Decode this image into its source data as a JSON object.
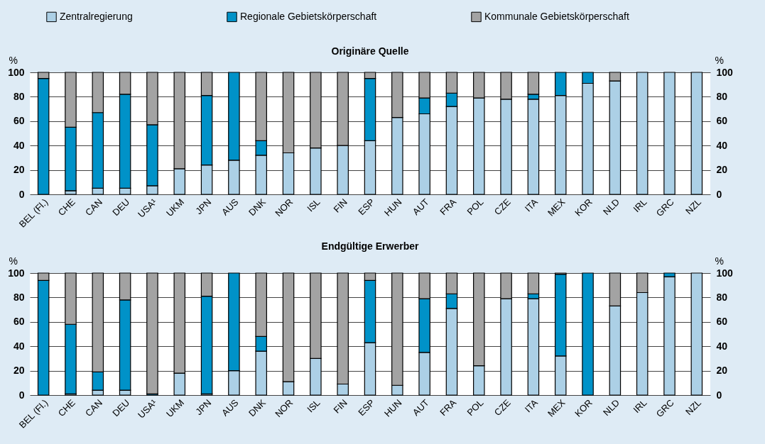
{
  "chart_data": [
    {
      "type": "bar",
      "stacked": true,
      "title": "Originäre Quelle",
      "ylabel": "%",
      "y2label": "%",
      "legend": "top",
      "grid": "y",
      "categories": [
        "BEL (Fl.)",
        "CHE",
        "CAN",
        "DEU",
        "USA¹",
        "UKM",
        "JPN",
        "AUS",
        "DNK",
        "NOR",
        "ISL",
        "FIN",
        "ESP",
        "HUN",
        "AUT",
        "FRA",
        "POL",
        "CZE",
        "ITA",
        "MEX",
        "KOR",
        "NLD",
        "IRL",
        "GRC",
        "NZL"
      ],
      "series": [
        {
          "name": "Zentralregierung",
          "color": "#acd0e6",
          "values": [
            0,
            3,
            5,
            5,
            7,
            21,
            24,
            28,
            32,
            34,
            38,
            40,
            44,
            63,
            66,
            72,
            79,
            78,
            78,
            81,
            91,
            93,
            100,
            100,
            100
          ]
        },
        {
          "name": "Regionale Gebietskörperschaft",
          "color": "#0092c8",
          "values": [
            95,
            52,
            62,
            77,
            50,
            0,
            57,
            72,
            12,
            0,
            0,
            0,
            51,
            0,
            13,
            11,
            0,
            0,
            4,
            19,
            9,
            0,
            0,
            0,
            0
          ]
        },
        {
          "name": "Kommunale Gebietskörperschaft",
          "color": "#a3a3a3",
          "values": [
            5,
            45,
            33,
            18,
            43,
            79,
            19,
            0,
            56,
            66,
            62,
            60,
            5,
            37,
            21,
            17,
            21,
            22,
            18,
            0,
            0,
            7,
            0,
            0,
            0
          ]
        }
      ],
      "ylim": [
        0,
        100
      ],
      "yticks": [
        0,
        20,
        40,
        60,
        80,
        100
      ],
      "y2lim": [
        0,
        100
      ],
      "y2ticks": [
        0,
        20,
        40,
        60,
        80,
        100
      ]
    },
    {
      "type": "bar",
      "stacked": true,
      "title": "Endgültige Erwerber",
      "ylabel": "%",
      "y2label": "%",
      "grid": "y",
      "categories": [
        "BEL (Fl.)",
        "CHE",
        "CAN",
        "DEU",
        "USA¹",
        "UKM",
        "JPN",
        "AUS",
        "DNK",
        "NOR",
        "ISL",
        "FIN",
        "ESP",
        "HUN",
        "AUT",
        "FRA",
        "POL",
        "CZE",
        "ITA",
        "MEX",
        "KOR",
        "NLD",
        "IRL",
        "GRC",
        "NZL"
      ],
      "series": [
        {
          "color": "#acd0e6",
          "values": [
            0,
            1,
            4,
            4,
            0,
            18,
            1,
            20,
            36,
            11,
            30,
            9,
            43,
            8,
            35,
            71,
            24,
            79,
            79,
            32,
            0,
            73,
            84,
            97,
            100
          ]
        },
        {
          "color": "#0092c8",
          "values": [
            94,
            57,
            15,
            74,
            1,
            0,
            80,
            80,
            12,
            0,
            0,
            0,
            51,
            0,
            44,
            12,
            0,
            0,
            4,
            67,
            100,
            0,
            0,
            3,
            0
          ]
        },
        {
          "color": "#a3a3a3",
          "values": [
            6,
            42,
            81,
            22,
            99,
            82,
            19,
            0,
            52,
            89,
            70,
            91,
            6,
            92,
            21,
            17,
            76,
            21,
            17,
            1,
            0,
            27,
            16,
            0,
            0
          ]
        }
      ],
      "ylim": [
        0,
        100
      ],
      "yticks": [
        0,
        20,
        40,
        60,
        80,
        100
      ],
      "y2lim": [
        0,
        100
      ],
      "y2ticks": [
        0,
        20,
        40,
        60,
        80,
        100
      ]
    }
  ]
}
